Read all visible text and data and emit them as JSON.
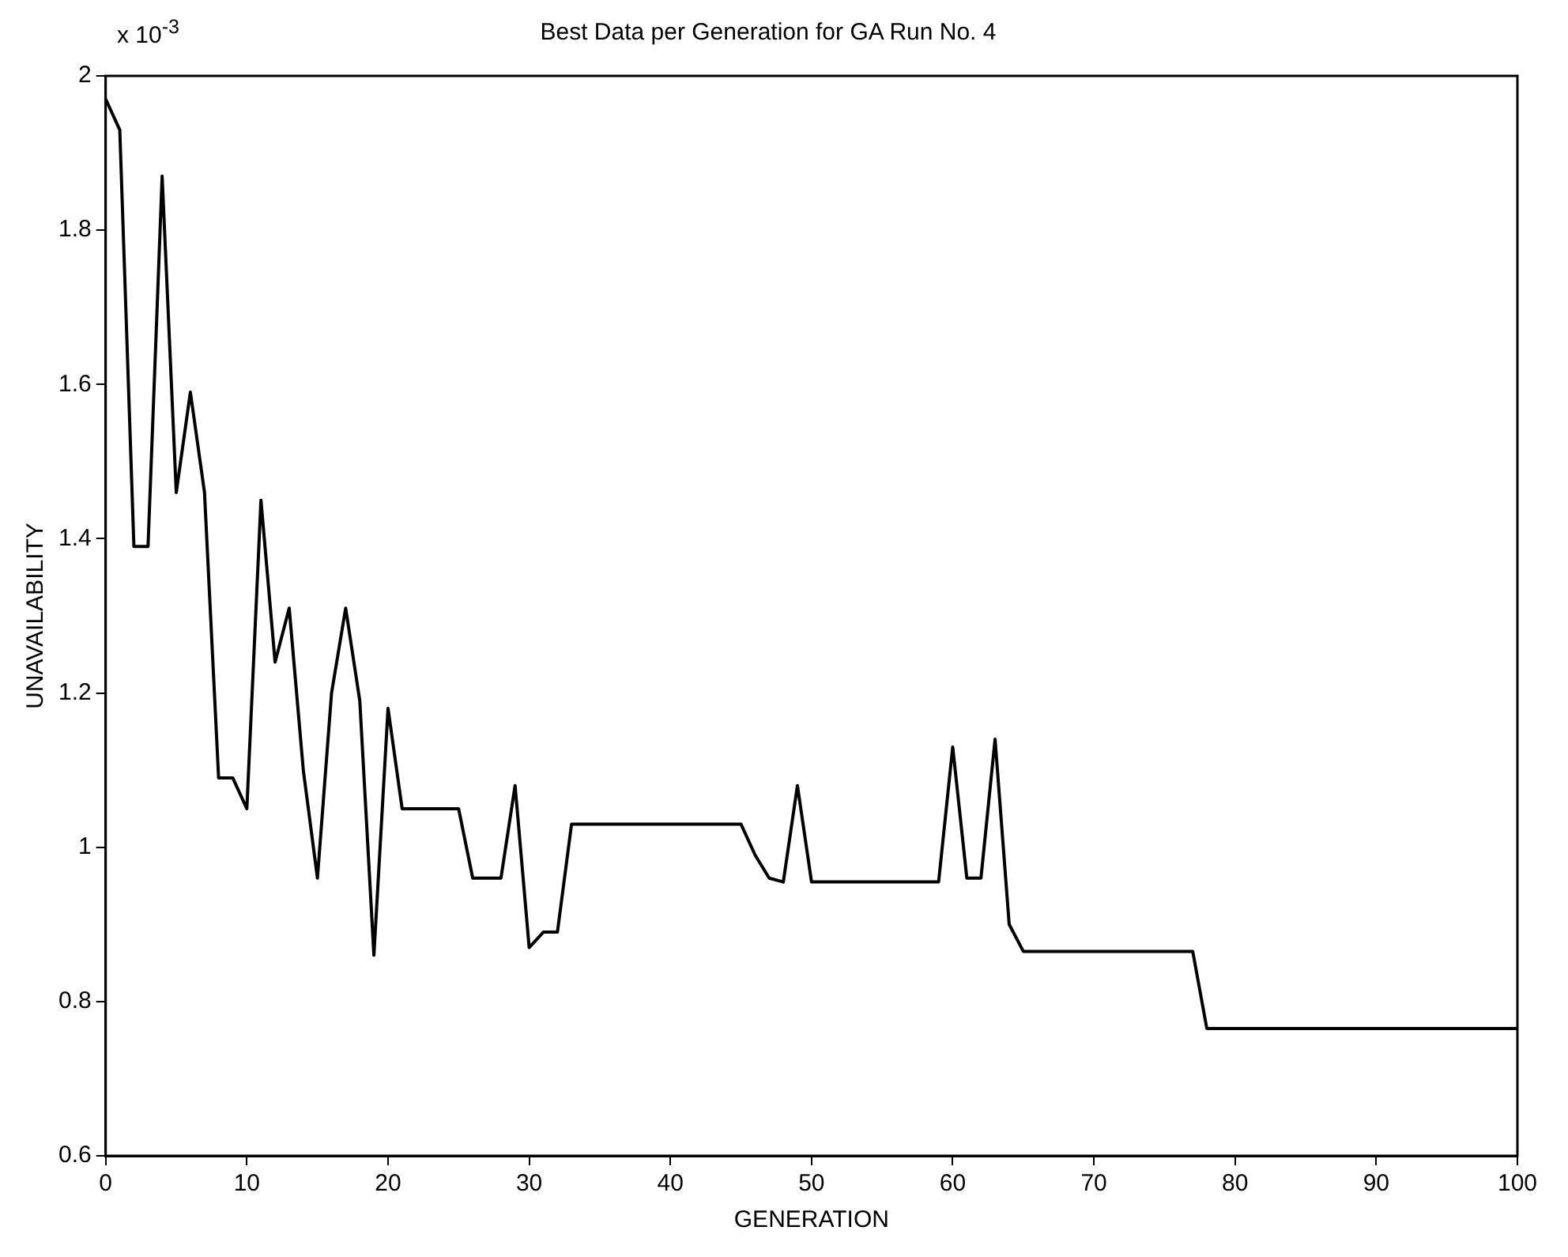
{
  "chart_data": {
    "type": "line",
    "title": "Best Data per Generation for GA Run No. 4",
    "xlabel": "GENERATION",
    "ylabel": "UNAVAILABILITY",
    "annotations": [
      "x 10$^{-3}$"
    ],
    "x": [
      0,
      1,
      2,
      3,
      4,
      5,
      6,
      7,
      8,
      9,
      10,
      11,
      12,
      13,
      14,
      15,
      16,
      17,
      18,
      19,
      20,
      21,
      22,
      23,
      24,
      25,
      26,
      27,
      28,
      29,
      30,
      31,
      32,
      33,
      34,
      35,
      36,
      37,
      38,
      39,
      40,
      41,
      42,
      43,
      44,
      45,
      46,
      47,
      48,
      49,
      50,
      51,
      52,
      53,
      54,
      55,
      56,
      57,
      58,
      59,
      60,
      61,
      62,
      63,
      64,
      65,
      66,
      67,
      68,
      69,
      70,
      71,
      72,
      73,
      74,
      75,
      76,
      77,
      78,
      79,
      80,
      81,
      82,
      83,
      84,
      85,
      86,
      87,
      88,
      89,
      90,
      91,
      92,
      93,
      94,
      95,
      96,
      97,
      98,
      99,
      100
    ],
    "series": [
      {
        "color": "#000000",
        "values": [
          1.97,
          1.93,
          1.39,
          1.39,
          1.87,
          1.46,
          1.59,
          1.46,
          1.09,
          1.09,
          1.05,
          1.45,
          1.24,
          1.31,
          1.1,
          0.96,
          1.2,
          1.31,
          1.19,
          0.86,
          1.18,
          1.05,
          1.05,
          1.05,
          1.05,
          1.05,
          0.96,
          0.96,
          0.96,
          1.08,
          0.87,
          0.89,
          0.89,
          1.03,
          1.03,
          1.03,
          1.03,
          1.03,
          1.03,
          1.03,
          1.03,
          1.03,
          1.03,
          1.03,
          1.03,
          1.03,
          0.99,
          0.96,
          0.955,
          1.08,
          0.955,
          0.955,
          0.955,
          0.955,
          0.955,
          0.955,
          0.955,
          0.955,
          0.955,
          0.955,
          1.13,
          0.96,
          0.96,
          1.14,
          0.9,
          0.865,
          0.865,
          0.865,
          0.865,
          0.865,
          0.865,
          0.865,
          0.865,
          0.865,
          0.865,
          0.865,
          0.865,
          0.865,
          0.765,
          0.765,
          0.765,
          0.765,
          0.765,
          0.765,
          0.765,
          0.765,
          0.765,
          0.765,
          0.765,
          0.765,
          0.765,
          0.765,
          0.765,
          0.765,
          0.765,
          0.765,
          0.765,
          0.765,
          0.765,
          0.765,
          0.765
        ]
      }
    ],
    "xlim": [
      0,
      100
    ],
    "xticks": [
      0,
      10,
      20,
      30,
      40,
      50,
      60,
      70,
      80,
      90,
      100
    ],
    "ylim": [
      0.6,
      2
    ],
    "yticks": [
      0.6,
      0.8,
      1,
      1.2,
      1.4,
      1.6,
      1.8,
      2
    ],
    "grid": false,
    "legend": false,
    "marker": "none",
    "line_style": "solid"
  }
}
